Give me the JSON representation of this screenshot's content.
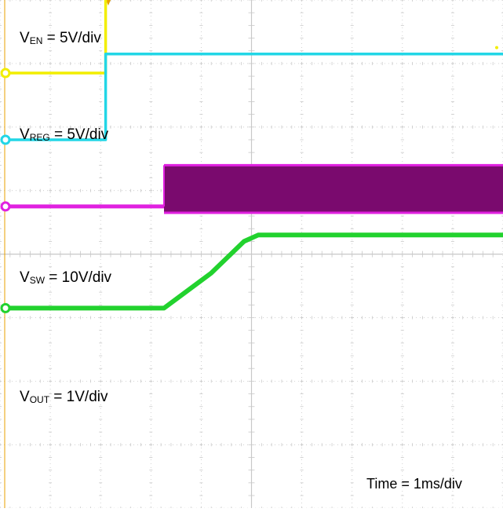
{
  "chart_data": {
    "type": "line",
    "title": "",
    "xlabel": "",
    "ylabel": "",
    "time_label": "Time = 1ms/div",
    "grid": true,
    "divisions": {
      "x": 10,
      "y": 8
    },
    "xlim": [
      0,
      5.3
    ],
    "colors": {
      "grid": "#c8c8c8",
      "trigger": "#e8a000"
    },
    "series": [
      {
        "label_main": "V",
        "label_sub": "EN",
        "label_rest": " = 5V/div",
        "color": "#f2ee00",
        "ground_div": 1.15,
        "marker_color": "#f2ee00",
        "kind": "step",
        "points": [
          [
            0,
            0
          ],
          [
            1.08,
            0
          ],
          [
            1.08,
            1.25
          ],
          [
            5.3,
            1.25
          ]
        ]
      },
      {
        "label_main": "V",
        "label_sub": "REG",
        "label_rest": " = 5V/div",
        "color": "#22d6e6",
        "ground_div": 2.2,
        "marker_color": "#22d6e6",
        "kind": "step",
        "points": [
          [
            0,
            0
          ],
          [
            1.08,
            0
          ],
          [
            1.08,
            1.35
          ],
          [
            5.3,
            1.35
          ]
        ]
      },
      {
        "label_main": "V",
        "label_sub": "SW",
        "label_rest": " = 10V/div",
        "color": "#e020e0",
        "fill": "#7a0a6e",
        "ground_div": 3.25,
        "marker_color": "#e020e0",
        "kind": "switching",
        "start": 1.7,
        "high_div": 0.65,
        "low_div": -0.1,
        "points": [
          [
            0,
            0
          ],
          [
            1.7,
            0
          ],
          [
            5.3,
            0
          ]
        ]
      },
      {
        "label_main": "V",
        "label_sub": "OUT",
        "label_rest": " = 1V/div",
        "color": "#22d22e",
        "ground_div": 4.85,
        "marker_color": "#22d22e",
        "kind": "ramp",
        "points": [
          [
            0,
            0
          ],
          [
            1.7,
            0
          ],
          [
            2.2,
            0.55
          ],
          [
            2.55,
            1.05
          ],
          [
            2.7,
            1.15
          ],
          [
            5.3,
            1.15
          ]
        ]
      }
    ]
  }
}
